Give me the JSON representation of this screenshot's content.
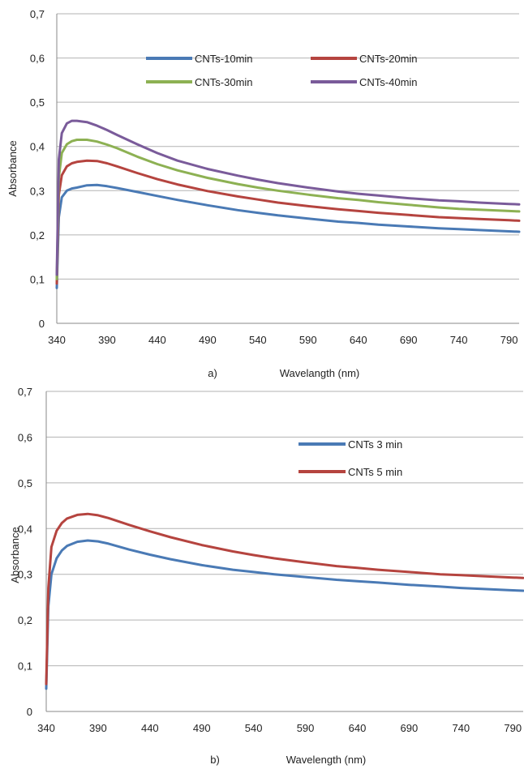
{
  "chart_data": [
    {
      "panel_label": "a)",
      "type": "line",
      "xlabel": "Wavelangth (nm)",
      "ylabel": "Absorbance",
      "xlim": [
        340,
        800
      ],
      "ylim": [
        0,
        0.7
      ],
      "xticks": [
        340,
        390,
        440,
        490,
        540,
        590,
        640,
        690,
        740,
        790
      ],
      "yticks": [
        "0",
        "0,1",
        "0,2",
        "0,3",
        "0,4",
        "0,5",
        "0,6",
        "0,7"
      ],
      "grid": true,
      "legend_position": "top-center",
      "x": [
        340,
        342,
        345,
        350,
        355,
        360,
        370,
        380,
        390,
        400,
        420,
        440,
        460,
        490,
        520,
        540,
        560,
        590,
        620,
        640,
        660,
        690,
        720,
        740,
        760,
        790,
        800
      ],
      "series": [
        {
          "name": "CNTs-10min",
          "color": "#4a7ab5",
          "values": [
            0.08,
            0.24,
            0.285,
            0.3,
            0.305,
            0.307,
            0.312,
            0.313,
            0.31,
            0.306,
            0.297,
            0.288,
            0.279,
            0.267,
            0.256,
            0.25,
            0.244,
            0.237,
            0.23,
            0.227,
            0.223,
            0.219,
            0.215,
            0.213,
            0.211,
            0.208,
            0.207
          ]
        },
        {
          "name": "CNTs-20min",
          "color": "#b5443f",
          "values": [
            0.09,
            0.29,
            0.335,
            0.355,
            0.362,
            0.365,
            0.368,
            0.367,
            0.362,
            0.355,
            0.34,
            0.326,
            0.314,
            0.299,
            0.287,
            0.28,
            0.273,
            0.265,
            0.258,
            0.254,
            0.25,
            0.245,
            0.24,
            0.238,
            0.236,
            0.233,
            0.232
          ]
        },
        {
          "name": "CNTs-30min",
          "color": "#8db153",
          "values": [
            0.1,
            0.33,
            0.385,
            0.405,
            0.412,
            0.415,
            0.415,
            0.411,
            0.404,
            0.396,
            0.377,
            0.36,
            0.346,
            0.329,
            0.315,
            0.307,
            0.3,
            0.291,
            0.283,
            0.279,
            0.274,
            0.268,
            0.262,
            0.259,
            0.257,
            0.254,
            0.253
          ]
        },
        {
          "name": "CNTs-40min",
          "color": "#7a5b9a",
          "values": [
            0.11,
            0.37,
            0.43,
            0.452,
            0.458,
            0.458,
            0.455,
            0.447,
            0.437,
            0.426,
            0.405,
            0.385,
            0.368,
            0.349,
            0.334,
            0.325,
            0.317,
            0.307,
            0.298,
            0.293,
            0.289,
            0.283,
            0.278,
            0.276,
            0.273,
            0.27,
            0.269
          ]
        }
      ]
    },
    {
      "panel_label": "b)",
      "type": "line",
      "xlabel": "Wavelength (nm)",
      "ylabel": "Absorbance",
      "xlim": [
        340,
        800
      ],
      "ylim": [
        0,
        0.7
      ],
      "xticks": [
        340,
        390,
        440,
        490,
        540,
        590,
        640,
        690,
        740,
        790
      ],
      "yticks": [
        "0",
        "0,1",
        "0,2",
        "0,3",
        "0,4",
        "0,5",
        "0,6",
        "0,7"
      ],
      "grid": true,
      "legend_position": "top-right",
      "x": [
        340,
        342,
        345,
        350,
        355,
        360,
        370,
        380,
        390,
        400,
        420,
        440,
        460,
        490,
        520,
        540,
        560,
        590,
        620,
        640,
        660,
        690,
        720,
        740,
        760,
        790,
        800
      ],
      "series": [
        {
          "name": "CNTs 3 min",
          "color": "#4a7ab5",
          "values": [
            0.05,
            0.23,
            0.3,
            0.335,
            0.352,
            0.362,
            0.371,
            0.374,
            0.372,
            0.367,
            0.354,
            0.343,
            0.333,
            0.32,
            0.31,
            0.305,
            0.3,
            0.294,
            0.288,
            0.285,
            0.282,
            0.277,
            0.273,
            0.27,
            0.268,
            0.265,
            0.264
          ]
        },
        {
          "name": "CNTs 5 min",
          "color": "#b5443f",
          "values": [
            0.06,
            0.27,
            0.36,
            0.395,
            0.412,
            0.422,
            0.43,
            0.432,
            0.429,
            0.423,
            0.408,
            0.394,
            0.381,
            0.364,
            0.35,
            0.342,
            0.335,
            0.326,
            0.318,
            0.314,
            0.31,
            0.305,
            0.3,
            0.298,
            0.296,
            0.293,
            0.292
          ]
        }
      ]
    }
  ]
}
